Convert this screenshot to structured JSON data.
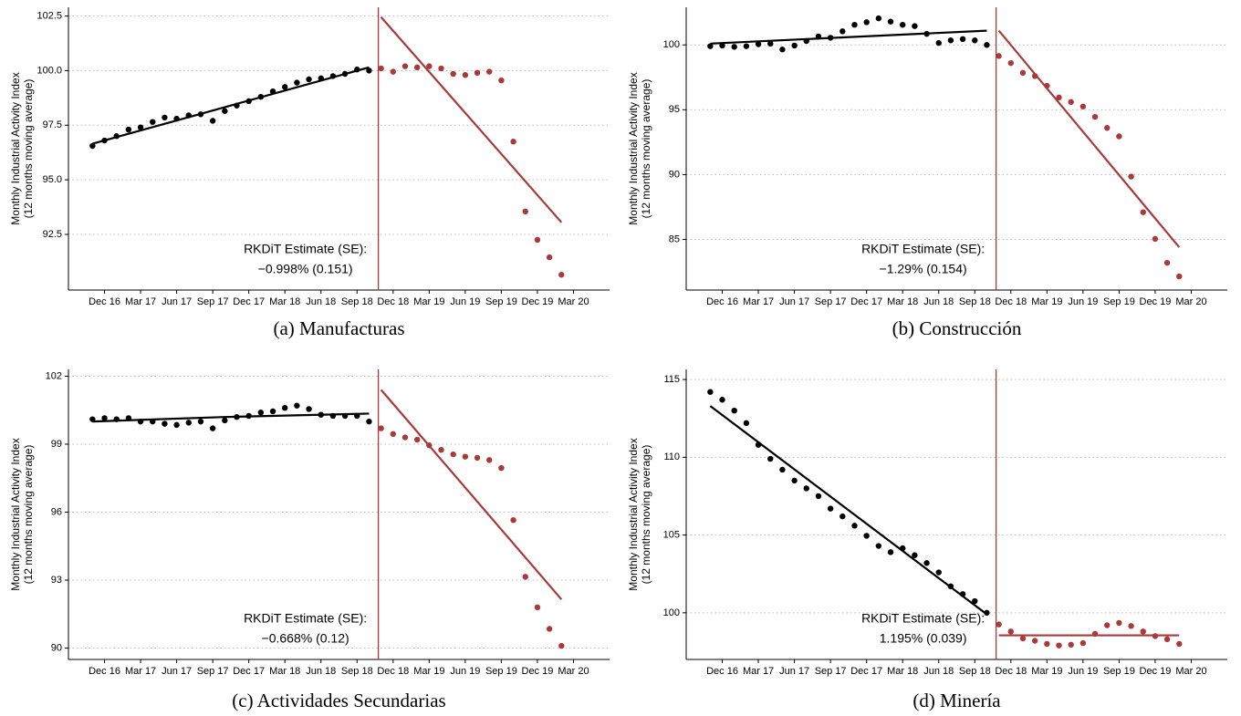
{
  "chart_data": [
    {
      "type": "scatter",
      "ylabel": [
        "Monthly Industrial Activity Index",
        "(12 months moving average)"
      ],
      "caption": "(a) Manufacturas",
      "annotation": [
        "RKDiT Estimate (SE):",
        "−0.998% (0.151)"
      ],
      "xlim": [
        "2016-09",
        "2020-06"
      ],
      "ylim": [
        89.95,
        102.9
      ],
      "xticks": [
        {
          "value": "2016-12",
          "label": "Dec 16"
        },
        {
          "value": "2017-03",
          "label": "Mar 17"
        },
        {
          "value": "2017-06",
          "label": "Jun 17"
        },
        {
          "value": "2017-09",
          "label": "Sep 17"
        },
        {
          "value": "2017-12",
          "label": "Dec 17"
        },
        {
          "value": "2018-03",
          "label": "Mar 18"
        },
        {
          "value": "2018-06",
          "label": "Jun 18"
        },
        {
          "value": "2018-09",
          "label": "Sep 18"
        },
        {
          "value": "2018-12",
          "label": "Dec 18"
        },
        {
          "value": "2019-03",
          "label": "Mar 19"
        },
        {
          "value": "2019-06",
          "label": "Jun 19"
        },
        {
          "value": "2019-09",
          "label": "Sep 19"
        },
        {
          "value": "2019-12",
          "label": "Dec 19"
        },
        {
          "value": "2020-03",
          "label": "Mar 20"
        }
      ],
      "yticks": [
        92.5,
        {
          "value": 95,
          "label": "95.0"
        },
        97.5,
        {
          "value": 100,
          "label": "100.0"
        },
        102.5
      ],
      "grid": true,
      "cutoff": "2018-11",
      "cutoff_color": "#a83a3a",
      "series": [
        {
          "color": "#000000",
          "x": [
            "2016-11",
            "2016-12",
            "2017-01",
            "2017-02",
            "2017-03",
            "2017-04",
            "2017-05",
            "2017-06",
            "2017-07",
            "2017-08",
            "2017-09",
            "2017-10",
            "2017-11",
            "2017-12",
            "2018-01",
            "2018-02",
            "2018-03",
            "2018-04",
            "2018-05",
            "2018-06",
            "2018-07",
            "2018-08",
            "2018-09",
            "2018-10"
          ],
          "values": [
            96.55,
            96.8,
            97.0,
            97.3,
            97.4,
            97.65,
            97.85,
            97.8,
            97.95,
            98.0,
            97.7,
            98.15,
            98.4,
            98.6,
            98.8,
            99.05,
            99.25,
            99.45,
            99.6,
            99.65,
            99.75,
            99.85,
            100.05,
            100.0
          ]
        },
        {
          "color": "#a83a3a",
          "x": [
            "2018-11",
            "2018-12",
            "2019-01",
            "2019-02",
            "2019-03",
            "2019-04",
            "2019-05",
            "2019-06",
            "2019-07",
            "2019-08",
            "2019-09",
            "2019-10",
            "2019-11",
            "2019-12",
            "2020-01",
            "2020-02"
          ],
          "values": [
            100.1,
            99.95,
            100.2,
            100.15,
            100.2,
            100.1,
            99.85,
            99.8,
            99.9,
            99.95,
            99.55,
            96.75,
            93.55,
            92.25,
            91.45,
            90.65
          ]
        }
      ],
      "fit_lines": [
        {
          "color": "#000000",
          "x": [
            "2016-11",
            "2018-10"
          ],
          "values": [
            96.65,
            100.15
          ]
        },
        {
          "color": "#a83a3a",
          "x": [
            "2018-11",
            "2020-02"
          ],
          "values": [
            102.45,
            93.05
          ]
        }
      ]
    },
    {
      "type": "scatter",
      "ylabel": [
        "Monthly Industrial Activity Index",
        "(12 months moving average)"
      ],
      "caption": "(b) Construcción",
      "annotation": [
        "RKDiT Estimate (SE):",
        "−1.29% (0.154)"
      ],
      "xlim": [
        "2016-09",
        "2020-06"
      ],
      "ylim": [
        81.1,
        102.9
      ],
      "xticks": [
        {
          "value": "2016-12",
          "label": "Dec 16"
        },
        {
          "value": "2017-03",
          "label": "Mar 17"
        },
        {
          "value": "2017-06",
          "label": "Jun 17"
        },
        {
          "value": "2017-09",
          "label": "Sep 17"
        },
        {
          "value": "2017-12",
          "label": "Dec 17"
        },
        {
          "value": "2018-03",
          "label": "Mar 18"
        },
        {
          "value": "2018-06",
          "label": "Jun 18"
        },
        {
          "value": "2018-09",
          "label": "Sep 18"
        },
        {
          "value": "2018-12",
          "label": "Dec 18"
        },
        {
          "value": "2019-03",
          "label": "Mar 19"
        },
        {
          "value": "2019-06",
          "label": "Jun 19"
        },
        {
          "value": "2019-09",
          "label": "Sep 19"
        },
        {
          "value": "2019-12",
          "label": "Dec 19"
        },
        {
          "value": "2020-03",
          "label": "Mar 20"
        }
      ],
      "yticks": [
        85,
        90,
        95,
        100
      ],
      "grid": true,
      "cutoff": "2018-11",
      "cutoff_color": "#a83a3a",
      "series": [
        {
          "color": "#000000",
          "x": [
            "2016-11",
            "2016-12",
            "2017-01",
            "2017-02",
            "2017-03",
            "2017-04",
            "2017-05",
            "2017-06",
            "2017-07",
            "2017-08",
            "2017-09",
            "2017-10",
            "2017-11",
            "2017-12",
            "2018-01",
            "2018-02",
            "2018-03",
            "2018-04",
            "2018-05",
            "2018-06",
            "2018-07",
            "2018-08",
            "2018-09",
            "2018-10"
          ],
          "values": [
            99.9,
            99.95,
            99.85,
            99.9,
            100.05,
            100.1,
            99.65,
            99.95,
            100.3,
            100.65,
            100.55,
            101.05,
            101.55,
            101.75,
            102.05,
            101.8,
            101.55,
            101.45,
            100.85,
            100.15,
            100.35,
            100.45,
            100.35,
            100.0
          ]
        },
        {
          "color": "#a83a3a",
          "x": [
            "2018-11",
            "2018-12",
            "2019-01",
            "2019-02",
            "2019-03",
            "2019-04",
            "2019-05",
            "2019-06",
            "2019-07",
            "2019-08",
            "2019-09",
            "2019-10",
            "2019-11",
            "2019-12",
            "2020-01",
            "2020-02"
          ],
          "values": [
            99.15,
            98.6,
            97.85,
            97.6,
            96.85,
            95.95,
            95.6,
            95.25,
            94.45,
            93.6,
            92.95,
            89.85,
            87.1,
            85.05,
            83.2,
            82.15
          ]
        }
      ],
      "fit_lines": [
        {
          "color": "#000000",
          "x": [
            "2016-11",
            "2018-10"
          ],
          "values": [
            100.1,
            101.1
          ]
        },
        {
          "color": "#a83a3a",
          "x": [
            "2018-11",
            "2020-02"
          ],
          "values": [
            101.1,
            84.4
          ]
        }
      ]
    },
    {
      "type": "scatter",
      "ylabel": [
        "Monthly Industrial Activity Index",
        "(12 months moving average)"
      ],
      "caption": "(c) Actividades Secundarias",
      "annotation": [
        "RKDiT Estimate (SE):",
        "−0.668% (0.12)"
      ],
      "xlim": [
        "2016-09",
        "2020-06"
      ],
      "ylim": [
        89.5,
        102.3
      ],
      "xticks": [
        {
          "value": "2016-12",
          "label": "Dec 16"
        },
        {
          "value": "2017-03",
          "label": "Mar 17"
        },
        {
          "value": "2017-06",
          "label": "Jun 17"
        },
        {
          "value": "2017-09",
          "label": "Sep 17"
        },
        {
          "value": "2017-12",
          "label": "Dec 17"
        },
        {
          "value": "2018-03",
          "label": "Mar 18"
        },
        {
          "value": "2018-06",
          "label": "Jun 18"
        },
        {
          "value": "2018-09",
          "label": "Sep 18"
        },
        {
          "value": "2018-12",
          "label": "Dec 18"
        },
        {
          "value": "2019-03",
          "label": "Mar 19"
        },
        {
          "value": "2019-06",
          "label": "Jun 19"
        },
        {
          "value": "2019-09",
          "label": "Sep 19"
        },
        {
          "value": "2019-12",
          "label": "Dec 19"
        },
        {
          "value": "2020-03",
          "label": "Mar 20"
        }
      ],
      "yticks": [
        90,
        93,
        96,
        99,
        102
      ],
      "grid": true,
      "cutoff": "2018-11",
      "cutoff_color": "#a83a3a",
      "series": [
        {
          "color": "#000000",
          "x": [
            "2016-11",
            "2016-12",
            "2017-01",
            "2017-02",
            "2017-03",
            "2017-04",
            "2017-05",
            "2017-06",
            "2017-07",
            "2017-08",
            "2017-09",
            "2017-10",
            "2017-11",
            "2017-12",
            "2018-01",
            "2018-02",
            "2018-03",
            "2018-04",
            "2018-05",
            "2018-06",
            "2018-07",
            "2018-08",
            "2018-09",
            "2018-10"
          ],
          "values": [
            100.1,
            100.15,
            100.1,
            100.15,
            100.0,
            100.0,
            99.9,
            99.85,
            99.95,
            100.0,
            99.7,
            100.05,
            100.2,
            100.25,
            100.4,
            100.45,
            100.6,
            100.7,
            100.55,
            100.3,
            100.25,
            100.25,
            100.25,
            100.0
          ]
        },
        {
          "color": "#a83a3a",
          "x": [
            "2018-11",
            "2018-12",
            "2019-01",
            "2019-02",
            "2019-03",
            "2019-04",
            "2019-05",
            "2019-06",
            "2019-07",
            "2019-08",
            "2019-09",
            "2019-10",
            "2019-11",
            "2019-12",
            "2020-01",
            "2020-02"
          ],
          "values": [
            99.7,
            99.45,
            99.3,
            99.2,
            98.95,
            98.75,
            98.55,
            98.45,
            98.4,
            98.3,
            97.95,
            95.65,
            93.15,
            91.8,
            90.85,
            90.1
          ]
        }
      ],
      "fit_lines": [
        {
          "color": "#000000",
          "x": [
            "2016-11",
            "2017-10",
            "2018-10"
          ],
          "values": [
            100.0,
            100.2,
            100.35
          ]
        },
        {
          "color": "#a83a3a",
          "x": [
            "2018-11",
            "2020-02"
          ],
          "values": [
            101.4,
            92.15
          ]
        }
      ]
    },
    {
      "type": "scatter",
      "ylabel": [
        "Monthly Industrial Activity Index",
        "(12 months moving average)"
      ],
      "caption": "(d) Minería",
      "annotation": [
        "RKDiT Estimate (SE):",
        "1.195% (0.039)"
      ],
      "xlim": [
        "2016-09",
        "2020-06"
      ],
      "ylim": [
        97.0,
        115.65
      ],
      "xticks": [
        {
          "value": "2016-12",
          "label": "Dec 16"
        },
        {
          "value": "2017-03",
          "label": "Mar 17"
        },
        {
          "value": "2017-06",
          "label": "Jun 17"
        },
        {
          "value": "2017-09",
          "label": "Sep 17"
        },
        {
          "value": "2017-12",
          "label": "Dec 17"
        },
        {
          "value": "2018-03",
          "label": "Mar 18"
        },
        {
          "value": "2018-06",
          "label": "Jun 18"
        },
        {
          "value": "2018-09",
          "label": "Sep 18"
        },
        {
          "value": "2018-12",
          "label": "Dec 18"
        },
        {
          "value": "2019-03",
          "label": "Mar 19"
        },
        {
          "value": "2019-06",
          "label": "Jun 19"
        },
        {
          "value": "2019-09",
          "label": "Sep 19"
        },
        {
          "value": "2019-12",
          "label": "Dec 19"
        },
        {
          "value": "2020-03",
          "label": "Mar 20"
        }
      ],
      "yticks": [
        100,
        105,
        110,
        115
      ],
      "grid": true,
      "cutoff": "2018-11",
      "cutoff_color": "#a83a3a",
      "series": [
        {
          "color": "#000000",
          "x": [
            "2016-11",
            "2016-12",
            "2017-01",
            "2017-02",
            "2017-03",
            "2017-04",
            "2017-05",
            "2017-06",
            "2017-07",
            "2017-08",
            "2017-09",
            "2017-10",
            "2017-11",
            "2017-12",
            "2018-01",
            "2018-02",
            "2018-03",
            "2018-04",
            "2018-05",
            "2018-06",
            "2018-07",
            "2018-08",
            "2018-09",
            "2018-10"
          ],
          "values": [
            114.2,
            113.7,
            113.0,
            112.2,
            110.8,
            109.9,
            109.2,
            108.5,
            108.0,
            107.5,
            106.7,
            106.2,
            105.6,
            104.95,
            104.3,
            103.9,
            104.15,
            103.7,
            103.2,
            102.6,
            101.7,
            101.2,
            100.75,
            100.0
          ]
        },
        {
          "color": "#a83a3a",
          "x": [
            "2018-11",
            "2018-12",
            "2019-01",
            "2019-02",
            "2019-03",
            "2019-04",
            "2019-05",
            "2019-06",
            "2019-07",
            "2019-08",
            "2019-09",
            "2019-10",
            "2019-11",
            "2019-12",
            "2020-01",
            "2020-02"
          ],
          "values": [
            99.25,
            98.8,
            98.35,
            98.2,
            98.0,
            97.9,
            97.95,
            98.05,
            98.65,
            99.2,
            99.35,
            99.15,
            98.8,
            98.5,
            98.3,
            98.0
          ]
        }
      ],
      "fit_lines": [
        {
          "color": "#000000",
          "x": [
            "2016-11",
            "2018-10"
          ],
          "values": [
            113.3,
            99.9
          ]
        },
        {
          "color": "#a83a3a",
          "x": [
            "2018-11",
            "2020-02"
          ],
          "values": [
            98.55,
            98.55
          ]
        }
      ]
    }
  ]
}
